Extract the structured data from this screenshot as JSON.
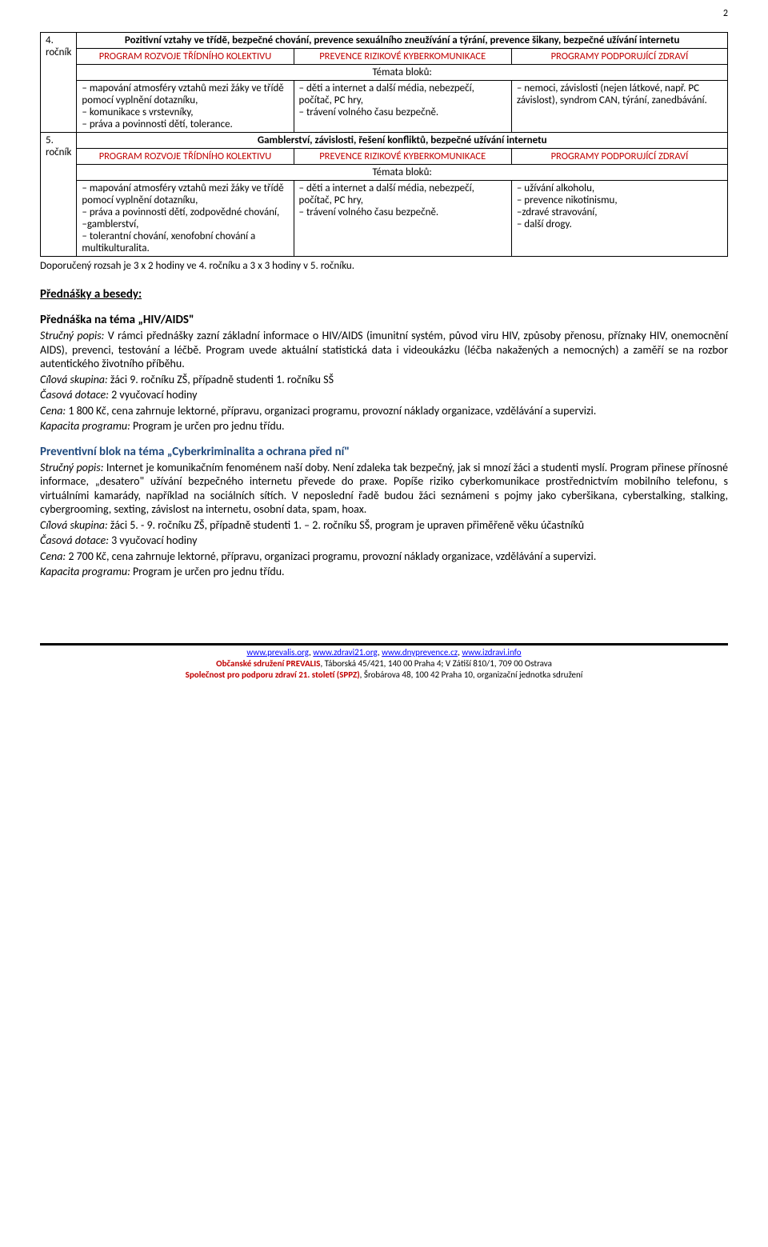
{
  "pageNumber": "2",
  "table1": {
    "grade": "4. ročník",
    "title": "Pozitivní vztahy ve třídě, bezpečné chování, prevence sexuálního zneužívání a týrání, prevence šikany, bezpečné užívání internetu",
    "h1": "PROGRAM ROZVOJE TŘÍDNÍHO KOLEKTIVU",
    "h2": "PREVENCE RIZIKOVÉ KYBERKOMUNIKACE",
    "h3": "PROGRAMY PODPORUJÍCÍ ZDRAVÍ",
    "temata": "Témata bloků:",
    "c1": "– mapování atmosféry vztahů mezi žáky ve třídě pomocí vyplnění dotazníku,\n– komunikace s vrstevníky,\n– práva a povinnosti dětí, tolerance.",
    "c2": "– děti a internet a další média, nebezpečí, počítač, PC hry,\n– trávení volného času bezpečně.",
    "c3": "– nemoci, závislosti (nejen látkové, např. PC závislost), syndrom CAN, týrání, zanedbávání."
  },
  "table2": {
    "grade": "5. ročník",
    "title": "Gamblerství, závislosti, řešení konfliktů, bezpečné užívání internetu",
    "h1": "PROGRAM ROZVOJE TŘÍDNÍHO KOLEKTIVU",
    "h2": "PREVENCE RIZIKOVÉ KYBERKOMUNIKACE",
    "h3": "PROGRAMY PODPORUJÍCÍ ZDRAVÍ",
    "temata": "Témata bloků:",
    "c1": "– mapování atmosféry vztahů mezi žáky ve třídě pomocí vyplnění dotazníku,\n– práva a povinnosti dětí, zodpovědné chování,\n–gamblerství,\n– tolerantní chování, xenofobní chování a multikulturalita.",
    "c2": "– děti a internet a další média, nebezpečí, počítač, PC hry,\n– trávení volného času bezpečně.",
    "c3": "– užívání alkoholu,\n– prevence nikotinismu,\n–zdravé stravování,\n– další drogy."
  },
  "recommendedScope": "Doporučený rozsah je 3 x 2 hodiny ve 4. ročníku a 3 x 3 hodiny v 5. ročníku.",
  "sectionHeading": "Přednášky a besedy:",
  "lecture1": {
    "title": "Přednáška na téma „HIV/AIDS\"",
    "descLabel": "Stručný popis:",
    "desc": " V rámci přednášky zazní základní informace o HIV/AIDS (imunitní systém, původ viru HIV, způsoby přenosu, příznaky HIV, onemocnění AIDS), prevenci, testování a léčbě. Program uvede aktuální statistická data i videoukázku (léčba nakažených a nemocných) a zaměří se na rozbor autentického životního příběhu.",
    "targetLabel": "Cílová skupina:",
    "target": " žáci 9. ročníku ZŠ, případně studenti 1. ročníku SŠ",
    "timeLabel": "Časová dotace:",
    "time": " 2 vyučovací hodiny",
    "priceLabel": "Cena:",
    "price": " 1 800 Kč, cena zahrnuje lektorné, přípravu, organizaci programu, provozní náklady organizace, vzdělávání a supervizi.",
    "capacityLabel": "Kapacita programu:",
    "capacity": " Program je určen pro jednu třídu."
  },
  "lecture2": {
    "title": "Preventivní blok na téma „Cyberkriminalita a ochrana před ní\"",
    "descLabel": "Stručný popis:",
    "desc": " Internet je komunikačním fenoménem naší doby. Není zdaleka tak bezpečný, jak si mnozí žáci a studenti myslí. Program přinese přínosné informace, „desatero\" užívání bezpečného internetu převede do praxe. Popíše riziko cyberkomunikace prostřednictvím mobilního telefonu, s virtuálními kamarády, například na sociálních sítích. V neposlední řadě budou žáci seznámeni s pojmy jako cyberšikana, cyberstalking, stalking, cybergrooming, sexting, závislost na internetu, osobní data, spam, hoax.",
    "targetLabel": "Cílová skupina:",
    "target": " žáci 5. - 9. ročníku ZŠ, případně studenti 1. – 2. ročníku SŠ, program je upraven přiměřeně věku účastníků",
    "timeLabel": "Časová dotace:",
    "time": " 3 vyučovací hodiny",
    "priceLabel": "Cena:",
    "price": " 2 700 Kč, cena zahrnuje lektorné, přípravu, organizaci programu, provozní náklady organizace, vzdělávání a supervizi.",
    "capacityLabel": "Kapacita programu:",
    "capacity": " Program je určen pro jednu třídu."
  },
  "footer": {
    "links": "www.prevalis.org, www.zdravi21.org, www.dnyprevence.cz, www.izdravi.info",
    "line2a": "Občanské sdružení PREVALIS",
    "line2b": ", Táborská 45/421, 140 00 Praha 4; V Zátiší 810/1, 709 00 Ostrava",
    "line3a": "Společnost pro podporu zdraví 21. století (SPPZ)",
    "line3b": ", Šrobárova 48, 100 42 Praha 10, organizační jednotka sdružení"
  }
}
